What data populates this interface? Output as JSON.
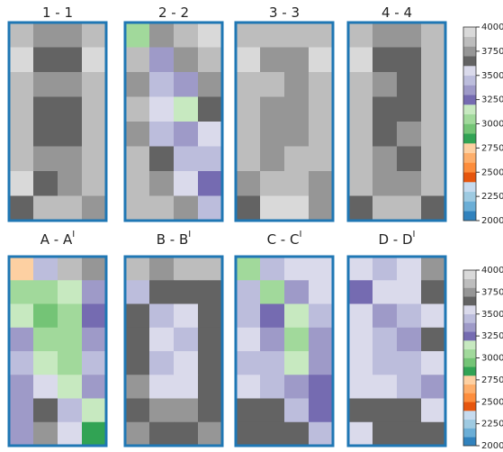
{
  "chart_data": {
    "type": "heatmap",
    "colors": [
      "#3182bd",
      "#6baed6",
      "#9ecae1",
      "#c6dbef",
      "#e6550d",
      "#fd8d3c",
      "#fdae6b",
      "#fdd0a2",
      "#31a354",
      "#74c476",
      "#a1d99b",
      "#c7e9c0",
      "#756bb1",
      "#9e9ac8",
      "#bcbddc",
      "#dadaeb",
      "#636363",
      "#969696",
      "#bdbdbd",
      "#d9d9d9"
    ],
    "colorbars": [
      {
        "lim": [
          2000,
          4000
        ],
        "ticks": [
          2000,
          2250,
          2500,
          2750,
          3000,
          3250,
          3500,
          3750,
          4000
        ]
      },
      {
        "lim": [
          2000,
          4000
        ],
        "ticks": [
          2000,
          2250,
          2500,
          2750,
          3000,
          3250,
          3500,
          3750,
          4000
        ]
      }
    ],
    "panels": [
      {
        "title": "1 - 1",
        "values": [
          [
            3800,
            3700,
            3700,
            3850
          ],
          [
            3900,
            3650,
            3650,
            3900
          ],
          [
            3850,
            3750,
            3700,
            3850
          ],
          [
            3850,
            3650,
            3650,
            3850
          ],
          [
            3800,
            3650,
            3650,
            3800
          ],
          [
            3850,
            3700,
            3700,
            3850
          ],
          [
            3900,
            3650,
            3750,
            3850
          ],
          [
            3650,
            3850,
            3800,
            3700
          ]
        ]
      },
      {
        "title": "2 - 2",
        "values": [
          [
            3000,
            3700,
            3850,
            3900
          ],
          [
            3800,
            3300,
            3700,
            3850
          ],
          [
            3700,
            3450,
            3300,
            3750
          ],
          [
            3800,
            3500,
            3150,
            3600
          ],
          [
            3700,
            3450,
            3300,
            3500
          ],
          [
            3800,
            3600,
            3400,
            3400
          ],
          [
            3850,
            3700,
            3500,
            3250
          ],
          [
            3800,
            3850,
            3700,
            3450
          ]
        ]
      },
      {
        "title": "3 - 3",
        "values": [
          [
            3850,
            3800,
            3800,
            3850
          ],
          [
            3900,
            3750,
            3750,
            3900
          ],
          [
            3850,
            3800,
            3750,
            3850
          ],
          [
            3800,
            3700,
            3700,
            3800
          ],
          [
            3850,
            3700,
            3700,
            3850
          ],
          [
            3800,
            3750,
            3800,
            3800
          ],
          [
            3700,
            3850,
            3850,
            3750
          ],
          [
            3650,
            3900,
            3900,
            3700
          ]
        ]
      },
      {
        "title": "4 - 4",
        "values": [
          [
            3850,
            3700,
            3750,
            3850
          ],
          [
            3900,
            3650,
            3650,
            3850
          ],
          [
            3850,
            3700,
            3650,
            3850
          ],
          [
            3850,
            3650,
            3650,
            3800
          ],
          [
            3800,
            3650,
            3700,
            3850
          ],
          [
            3850,
            3700,
            3650,
            3850
          ],
          [
            3850,
            3700,
            3700,
            3800
          ],
          [
            3650,
            3850,
            3800,
            3650
          ]
        ]
      },
      {
        "title": "A - A",
        "title_sup": "I",
        "values": [
          [
            2700,
            3400,
            3850,
            3700
          ],
          [
            3050,
            3000,
            3100,
            3300
          ],
          [
            3100,
            2950,
            3050,
            3250
          ],
          [
            3300,
            3050,
            3000,
            3350
          ],
          [
            3450,
            3100,
            3000,
            3400
          ],
          [
            3350,
            3500,
            3100,
            3300
          ],
          [
            3300,
            3650,
            3400,
            3150
          ],
          [
            3350,
            3700,
            3500,
            2800
          ]
        ]
      },
      {
        "title": "B - B",
        "title_sup": "I",
        "values": [
          [
            3800,
            3700,
            3800,
            3850
          ],
          [
            3450,
            3600,
            3650,
            3650
          ],
          [
            3650,
            3450,
            3500,
            3650
          ],
          [
            3650,
            3500,
            3400,
            3650
          ],
          [
            3650,
            3450,
            3500,
            3650
          ],
          [
            3700,
            3500,
            3500,
            3650
          ],
          [
            3650,
            3700,
            3700,
            3650
          ],
          [
            3700,
            3650,
            3650,
            3700
          ]
        ]
      },
      {
        "title": "C - C",
        "title_sup": "I",
        "values": [
          [
            3000,
            3450,
            3500,
            3550
          ],
          [
            3400,
            3050,
            3300,
            3500
          ],
          [
            3450,
            3250,
            3100,
            3450
          ],
          [
            3500,
            3350,
            3050,
            3300
          ],
          [
            3450,
            3400,
            3150,
            3350
          ],
          [
            3500,
            3450,
            3300,
            3200
          ],
          [
            3650,
            3650,
            3450,
            3250
          ],
          [
            3650,
            3650,
            3600,
            3400
          ]
        ]
      },
      {
        "title": "D - D",
        "title_sup": "I",
        "values": [
          [
            3500,
            3450,
            3550,
            3700
          ],
          [
            3200,
            3500,
            3550,
            3650
          ],
          [
            3550,
            3300,
            3450,
            3550
          ],
          [
            3500,
            3400,
            3300,
            3600
          ],
          [
            3550,
            3450,
            3400,
            3500
          ],
          [
            3500,
            3550,
            3450,
            3350
          ],
          [
            3650,
            3650,
            3600,
            3500
          ],
          [
            3550,
            3650,
            3650,
            3600
          ]
        ]
      }
    ]
  }
}
